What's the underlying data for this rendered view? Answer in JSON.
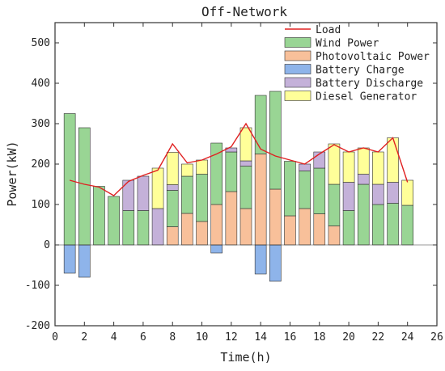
{
  "chart_data": {
    "type": "bar",
    "subtype": "stacked bar with line",
    "title": "Off-Network",
    "xlabel": "Time(h)",
    "ylabel": "Power(kW)",
    "xlim": [
      0,
      26
    ],
    "ylim": [
      -200,
      550
    ],
    "x_ticks": [
      0,
      2,
      4,
      6,
      8,
      10,
      12,
      14,
      16,
      18,
      20,
      22,
      24,
      26
    ],
    "y_ticks": [
      -200,
      -100,
      0,
      100,
      200,
      300,
      400,
      500
    ],
    "grid": false,
    "legend_position": "top-right",
    "x": [
      1,
      2,
      3,
      4,
      5,
      6,
      7,
      8,
      9,
      10,
      11,
      12,
      13,
      14,
      15,
      16,
      17,
      18,
      19,
      20,
      21,
      22,
      23,
      24
    ],
    "series": [
      {
        "name": "Photovoltaic Power",
        "kind": "bar",
        "color": "#f8c09a",
        "values": [
          0,
          0,
          0,
          0,
          0,
          0,
          0,
          45,
          78,
          58,
          100,
          132,
          90,
          225,
          138,
          72,
          90,
          77,
          47,
          0,
          0,
          0,
          0,
          0
        ]
      },
      {
        "name": "Wind Power",
        "kind": "bar",
        "color": "#99d594",
        "values": [
          325,
          290,
          145,
          120,
          85,
          85,
          0,
          90,
          92,
          117,
          152,
          98,
          105,
          145,
          242,
          135,
          93,
          113,
          103,
          85,
          150,
          100,
          103,
          98
        ]
      },
      {
        "name": "Battery Charge",
        "kind": "bar",
        "color": "#8eb4ea",
        "values": [
          -70,
          -80,
          0,
          0,
          0,
          0,
          0,
          0,
          0,
          0,
          -20,
          0,
          0,
          -72,
          -90,
          0,
          0,
          0,
          0,
          0,
          0,
          0,
          0,
          0
        ]
      },
      {
        "name": "Battery Discharge",
        "kind": "bar",
        "color": "#c4b1d9",
        "values": [
          0,
          0,
          0,
          0,
          75,
          85,
          90,
          14,
          0,
          0,
          0,
          10,
          13,
          0,
          0,
          0,
          17,
          40,
          0,
          70,
          25,
          50,
          52,
          0
        ]
      },
      {
        "name": "Diesel Generator",
        "kind": "bar",
        "color": "#ffff99",
        "values": [
          0,
          0,
          0,
          0,
          0,
          0,
          100,
          80,
          30,
          35,
          0,
          0,
          82,
          0,
          0,
          0,
          0,
          0,
          100,
          75,
          65,
          80,
          110,
          62
        ]
      },
      {
        "name": "Load",
        "kind": "line",
        "color": "#e02020",
        "values": [
          160,
          150,
          143,
          122,
          157,
          172,
          185,
          250,
          203,
          210,
          225,
          243,
          300,
          237,
          220,
          210,
          200,
          225,
          248,
          230,
          240,
          230,
          265,
          155
        ]
      }
    ],
    "legend_order": [
      "Load",
      "Wind Power",
      "Photovoltaic Power",
      "Battery Charge",
      "Battery Discharge",
      "Diesel Generator"
    ]
  }
}
